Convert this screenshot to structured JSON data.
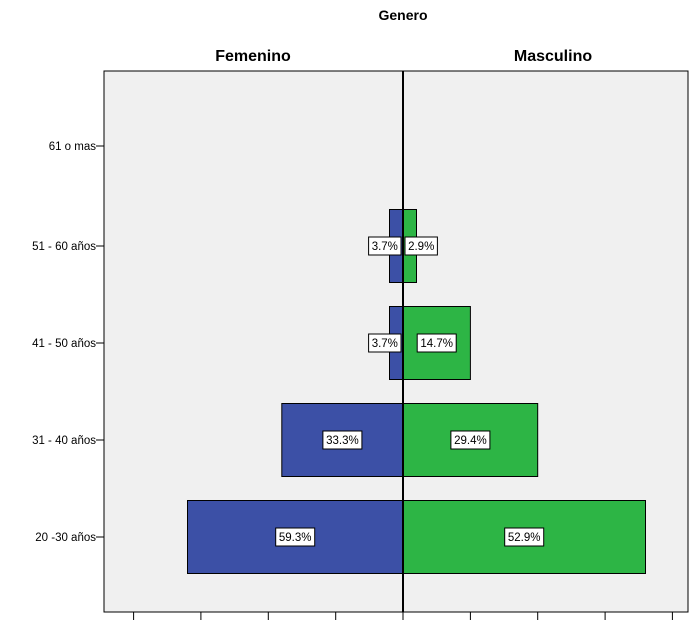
{
  "chart_data": {
    "type": "bar",
    "orientation": "horizontal",
    "title": "Genero",
    "categories": [
      "61 o mas",
      "51 - 60 años",
      "41 - 50 años",
      "31 - 40 años",
      "20 -30 años"
    ],
    "series": [
      {
        "name": "Femenino",
        "values": [
          0,
          1,
          1,
          9,
          16
        ],
        "labels": [
          "",
          "3.7%",
          "3.7%",
          "33.3%",
          "59.3%"
        ]
      },
      {
        "name": "Masculino",
        "values": [
          0,
          1,
          5,
          10,
          18
        ],
        "labels": [
          "",
          "2.9%",
          "14.7%",
          "29.4%",
          "52.9%"
        ]
      }
    ],
    "xlim": [
      0,
      20
    ],
    "grid": false,
    "legend": "none",
    "colors": {
      "Femenino": "#3c50a6",
      "Masculino": "#2db545",
      "plot_background": "#f0f0f0",
      "center_line": "#000000"
    }
  }
}
